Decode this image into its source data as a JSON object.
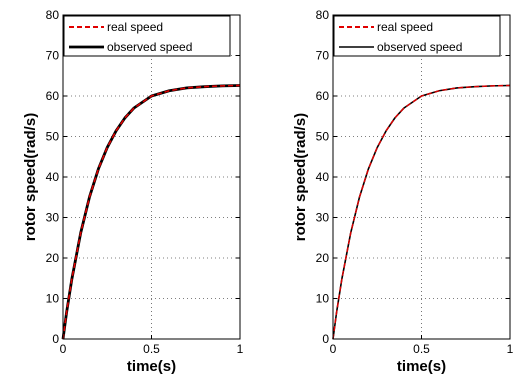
{
  "chart_data": [
    {
      "type": "line",
      "title": "",
      "xlabel": "time(s)",
      "ylabel": "rotor speed(rad/s)",
      "xlim": [
        0,
        1
      ],
      "ylim": [
        0,
        80
      ],
      "xticks": [
        "0",
        "0.5",
        "1"
      ],
      "yticks": [
        "0",
        "10",
        "20",
        "30",
        "40",
        "50",
        "60",
        "70",
        "80"
      ],
      "grid": true,
      "legend_position": "top-left",
      "x": [
        0,
        0.02,
        0.05,
        0.1,
        0.15,
        0.2,
        0.25,
        0.3,
        0.35,
        0.4,
        0.5,
        0.6,
        0.7,
        0.8,
        0.9,
        1.0
      ],
      "series": [
        {
          "name": "real speed",
          "color": "#e00000",
          "style": "dashed",
          "values": [
            0,
            6.5,
            14.8,
            26.2,
            35.1,
            42.0,
            47.3,
            51.4,
            54.6,
            57.0,
            60.0,
            61.3,
            62.0,
            62.3,
            62.5,
            62.6
          ]
        },
        {
          "name": "observed speed",
          "color": "#000000",
          "style": "solid-thick",
          "values": [
            0,
            6.5,
            14.8,
            26.2,
            35.1,
            42.0,
            47.3,
            51.4,
            54.6,
            57.0,
            60.0,
            61.3,
            62.0,
            62.3,
            62.5,
            62.6
          ]
        }
      ]
    },
    {
      "type": "line",
      "title": "",
      "xlabel": "time(s)",
      "ylabel": "rotor speed(rad/s)",
      "xlim": [
        0,
        1
      ],
      "ylim": [
        0,
        80
      ],
      "xticks": [
        "0",
        "0.5",
        "1"
      ],
      "yticks": [
        "0",
        "10",
        "20",
        "30",
        "40",
        "50",
        "60",
        "70",
        "80"
      ],
      "grid": true,
      "legend_position": "top-left",
      "x": [
        0,
        0.02,
        0.05,
        0.1,
        0.15,
        0.2,
        0.25,
        0.3,
        0.35,
        0.4,
        0.5,
        0.6,
        0.7,
        0.8,
        0.9,
        1.0
      ],
      "series": [
        {
          "name": "real speed",
          "color": "#e00000",
          "style": "dashed",
          "values": [
            0,
            6.5,
            14.8,
            26.2,
            35.1,
            42.0,
            47.3,
            51.4,
            54.6,
            57.0,
            60.0,
            61.3,
            62.0,
            62.3,
            62.5,
            62.6
          ]
        },
        {
          "name": "observed speed",
          "color": "#000000",
          "style": "solid",
          "values": [
            0,
            6.5,
            14.8,
            26.2,
            35.1,
            42.0,
            47.3,
            51.4,
            54.6,
            57.0,
            60.0,
            61.3,
            62.0,
            62.3,
            62.5,
            62.6
          ]
        }
      ]
    }
  ]
}
